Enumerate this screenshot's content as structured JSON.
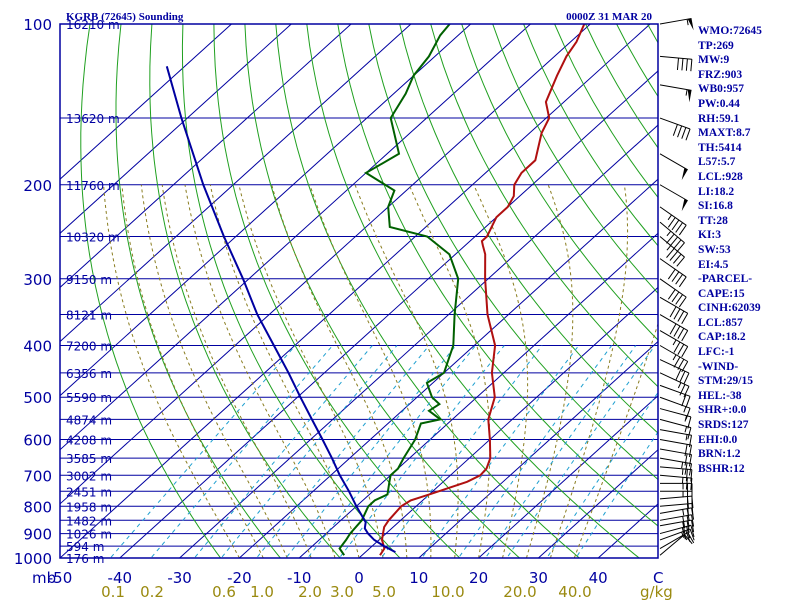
{
  "chart_data": {
    "type": "line",
    "title": "KGRB (72645) Sounding",
    "valid_time": "0000Z 31 MAR 20",
    "y_axis": {
      "unit_label": "mb",
      "scale": "log",
      "range": [
        1000,
        100
      ],
      "ticks": [
        100,
        200,
        300,
        400,
        500,
        600,
        700,
        800,
        900,
        1000
      ]
    },
    "x_axis": {
      "unit_label": "C",
      "range": [
        -50,
        50
      ],
      "ticks": [
        -50,
        -40,
        -30,
        -20,
        -10,
        0,
        10,
        20,
        30,
        40
      ],
      "skew": "skew-T"
    },
    "mixing_ratio_axis": {
      "unit_label": "g/kg",
      "ticks": [
        "0.1",
        "0.2",
        "0.6",
        "1.0",
        "2.0",
        "3.0",
        "5.0",
        "10.0",
        "20.0",
        "40.0"
      ],
      "values": [
        0.1,
        0.2,
        0.6,
        1.0,
        2.0,
        3.0,
        5.0,
        10.0,
        20.0,
        40.0
      ]
    },
    "height_labels": [
      {
        "p": 100,
        "label": "16210 m"
      },
      {
        "p": 150,
        "label": "13620 m"
      },
      {
        "p": 200,
        "label": "11760 m"
      },
      {
        "p": 250,
        "label": "10320 m"
      },
      {
        "p": 300,
        "label": "9150 m"
      },
      {
        "p": 350,
        "label": "8121 m"
      },
      {
        "p": 400,
        "label": "7200 m"
      },
      {
        "p": 450,
        "label": "6356 m"
      },
      {
        "p": 500,
        "label": "5590 m"
      },
      {
        "p": 550,
        "label": "4874 m"
      },
      {
        "p": 600,
        "label": "4208 m"
      },
      {
        "p": 650,
        "label": "3585 m"
      },
      {
        "p": 700,
        "label": "3002 m"
      },
      {
        "p": 750,
        "label": "2451 m"
      },
      {
        "p": 800,
        "label": "1958 m"
      },
      {
        "p": 850,
        "label": "1482 m"
      },
      {
        "p": 900,
        "label": "1026 m"
      },
      {
        "p": 950,
        "label": "594 m"
      },
      {
        "p": 1000,
        "label": "176 m"
      }
    ],
    "series": [
      {
        "name": "Temperature",
        "color": "#b01010",
        "points": [
          [
            988,
            3.0
          ],
          [
            960,
            2.5
          ],
          [
            925,
            0.5
          ],
          [
            900,
            -0.5
          ],
          [
            875,
            -1.5
          ],
          [
            850,
            -2.0
          ],
          [
            800,
            -2.5
          ],
          [
            780,
            -2.0
          ],
          [
            760,
            0.0
          ],
          [
            720,
            4.0
          ],
          [
            700,
            5.0
          ],
          [
            680,
            4.8
          ],
          [
            650,
            3.5
          ],
          [
            600,
            0.0
          ],
          [
            550,
            -4.0
          ],
          [
            500,
            -7.0
          ],
          [
            450,
            -12.0
          ],
          [
            400,
            -16.5
          ],
          [
            350,
            -23.5
          ],
          [
            300,
            -30.5
          ],
          [
            270,
            -35.0
          ],
          [
            260,
            -37.0
          ],
          [
            255,
            -38.0
          ],
          [
            250,
            -38.0
          ],
          [
            230,
            -40.0
          ],
          [
            220,
            -40.0
          ],
          [
            210,
            -41.0
          ],
          [
            200,
            -43.0
          ],
          [
            190,
            -44.0
          ],
          [
            180,
            -44.0
          ],
          [
            160,
            -48.0
          ],
          [
            150,
            -49.5
          ],
          [
            140,
            -53.0
          ],
          [
            125,
            -56.0
          ],
          [
            115,
            -58.0
          ],
          [
            108,
            -59.0
          ],
          [
            100,
            -61.0
          ]
        ]
      },
      {
        "name": "Dewpoint",
        "color": "#006000",
        "points": [
          [
            988,
            -3.0
          ],
          [
            960,
            -5.0
          ],
          [
            925,
            -5.5
          ],
          [
            900,
            -6.0
          ],
          [
            850,
            -6.5
          ],
          [
            800,
            -8.0
          ],
          [
            780,
            -8.0
          ],
          [
            760,
            -7.0
          ],
          [
            720,
            -9.0
          ],
          [
            700,
            -10.0
          ],
          [
            680,
            -10.0
          ],
          [
            650,
            -11.0
          ],
          [
            600,
            -12.5
          ],
          [
            560,
            -14.5
          ],
          [
            550,
            -12.0
          ],
          [
            530,
            -15.5
          ],
          [
            515,
            -15.0
          ],
          [
            500,
            -17.5
          ],
          [
            470,
            -21.0
          ],
          [
            450,
            -20.0
          ],
          [
            400,
            -23.5
          ],
          [
            350,
            -29.0
          ],
          [
            300,
            -35.0
          ],
          [
            270,
            -41.0
          ],
          [
            250,
            -48.0
          ],
          [
            240,
            -56.0
          ],
          [
            220,
            -60.0
          ],
          [
            205,
            -62.0
          ],
          [
            190,
            -70.0
          ],
          [
            175,
            -68.0
          ],
          [
            150,
            -76.0
          ],
          [
            135,
            -78.0
          ],
          [
            125,
            -80.0
          ],
          [
            115,
            -81.0
          ],
          [
            105,
            -83.0
          ],
          [
            100,
            -83.5
          ]
        ]
      },
      {
        "name": "Parcel",
        "color": "#0000a0",
        "points": [
          [
            975,
            5.0
          ],
          [
            950,
            2.0
          ],
          [
            925,
            -0.8
          ],
          [
            900,
            -3.0
          ],
          [
            880,
            -4.5
          ],
          [
            857,
            -5.5
          ],
          [
            800,
            -10.0
          ],
          [
            750,
            -14.0
          ],
          [
            700,
            -18.5
          ],
          [
            650,
            -23.0
          ],
          [
            600,
            -28.0
          ],
          [
            550,
            -33.5
          ],
          [
            500,
            -39.5
          ],
          [
            450,
            -46.0
          ],
          [
            400,
            -53.5
          ],
          [
            350,
            -62.0
          ],
          [
            300,
            -71.0
          ],
          [
            250,
            -82.0
          ],
          [
            200,
            -95.0
          ],
          [
            150,
            -111.0
          ],
          [
            120,
            -123.0
          ]
        ]
      }
    ],
    "winds": [
      {
        "p": 988,
        "dir": 230,
        "spd": 10
      },
      {
        "p": 960,
        "dir": 240,
        "spd": 15
      },
      {
        "p": 925,
        "dir": 250,
        "spd": 25
      },
      {
        "p": 900,
        "dir": 255,
        "spd": 30
      },
      {
        "p": 870,
        "dir": 260,
        "spd": 30
      },
      {
        "p": 850,
        "dir": 260,
        "spd": 30
      },
      {
        "p": 825,
        "dir": 260,
        "spd": 25
      },
      {
        "p": 800,
        "dir": 265,
        "spd": 20
      },
      {
        "p": 775,
        "dir": 265,
        "spd": 20
      },
      {
        "p": 750,
        "dir": 270,
        "spd": 25
      },
      {
        "p": 725,
        "dir": 270,
        "spd": 25
      },
      {
        "p": 700,
        "dir": 275,
        "spd": 25
      },
      {
        "p": 675,
        "dir": 275,
        "spd": 25
      },
      {
        "p": 650,
        "dir": 280,
        "spd": 25
      },
      {
        "p": 625,
        "dir": 280,
        "spd": 20
      },
      {
        "p": 600,
        "dir": 280,
        "spd": 20
      },
      {
        "p": 575,
        "dir": 280,
        "spd": 15
      },
      {
        "p": 550,
        "dir": 285,
        "spd": 15
      },
      {
        "p": 525,
        "dir": 285,
        "spd": 15
      },
      {
        "p": 500,
        "dir": 290,
        "spd": 15
      },
      {
        "p": 475,
        "dir": 290,
        "spd": 20
      },
      {
        "p": 450,
        "dir": 295,
        "spd": 25
      },
      {
        "p": 425,
        "dir": 295,
        "spd": 30
      },
      {
        "p": 400,
        "dir": 300,
        "spd": 35
      },
      {
        "p": 375,
        "dir": 300,
        "spd": 35
      },
      {
        "p": 350,
        "dir": 300,
        "spd": 40
      },
      {
        "p": 325,
        "dir": 300,
        "spd": 40
      },
      {
        "p": 300,
        "dir": 305,
        "spd": 40
      },
      {
        "p": 275,
        "dir": 305,
        "spd": 40
      },
      {
        "p": 250,
        "dir": 310,
        "spd": 45
      },
      {
        "p": 235,
        "dir": 310,
        "spd": 45
      },
      {
        "p": 220,
        "dir": 305,
        "spd": 45
      },
      {
        "p": 200,
        "dir": 300,
        "spd": 50
      },
      {
        "p": 175,
        "dir": 300,
        "spd": 50
      },
      {
        "p": 150,
        "dir": 290,
        "spd": 40
      },
      {
        "p": 130,
        "dir": 280,
        "spd": 55
      },
      {
        "p": 115,
        "dir": 275,
        "spd": 40
      },
      {
        "p": 100,
        "dir": 260,
        "spd": 55
      }
    ],
    "isotherms": [
      -120,
      -110,
      -100,
      -90,
      -80,
      -70,
      -60,
      -50,
      -40,
      -30,
      -20,
      -10,
      0,
      10,
      20,
      30,
      40
    ],
    "dry_adiabats_theta_k": [
      250,
      260,
      270,
      280,
      290,
      300,
      310,
      320,
      330,
      340,
      350,
      360,
      370,
      380,
      390,
      400,
      410,
      420,
      430,
      440,
      450,
      460,
      470,
      480,
      490,
      500
    ],
    "moist_adiabats_start_c": [
      -20,
      -16,
      -12,
      -8,
      -4,
      0,
      4,
      8,
      12,
      16,
      20,
      24,
      28,
      32,
      36
    ],
    "mixing_ratio_lines": [
      0.1,
      0.2,
      0.4,
      0.6,
      1.0,
      1.5,
      2.0,
      3.0,
      5.0,
      8.0,
      12.0,
      16.0,
      20.0,
      30.0,
      40.0
    ]
  },
  "indices": [
    "WMO:72645",
    "TP:269",
    "MW:9",
    "FRZ:903",
    "WB0:957",
    "PW:0.44",
    "RH:59.1",
    "MAXT:8.7",
    "TH:5414",
    "L57:5.7",
    "LCL:928",
    "LI:18.2",
    "SI:16.8",
    "TT:28",
    "KI:3",
    "SW:53",
    "EI:4.5",
    "-PARCEL-",
    "CAPE:15",
    "CINH:62039",
    "LCL:857",
    "CAP:18.2",
    "LFC:-1",
    "-WIND-",
    "STM:29/15",
    "HEL:-38",
    "SHR+:0.0",
    "SRDS:127",
    "EHI:0.0",
    "BRN:1.2",
    "BSHR:12"
  ],
  "colors": {
    "frame": "#0000a0",
    "isobar": "#0000a0",
    "isotherm": "#0000a0",
    "dry_adiabat": "#20a020",
    "moist_adiabat": "#8a7d20",
    "mixing_ratio": "#20a0d0",
    "wind_barb": "#000000",
    "mixing_label": "#9a8a10"
  }
}
